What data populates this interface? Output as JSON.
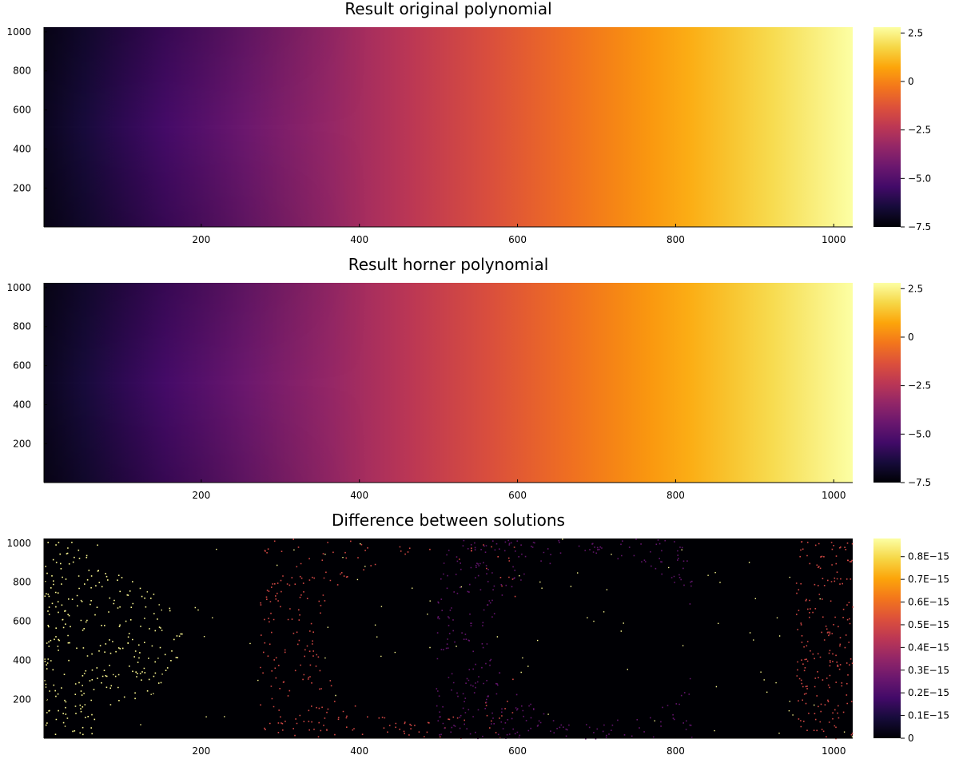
{
  "chart_data": [
    {
      "type": "heatmap",
      "title": "Result original polynomial",
      "x_ticks": [
        200,
        400,
        600,
        800,
        1000
      ],
      "y_ticks": [
        200,
        400,
        600,
        800,
        1000
      ],
      "xlim": [
        1,
        1024
      ],
      "ylim": [
        1,
        1024
      ],
      "colormap": "inferno",
      "colorbar": {
        "range": [
          -7.5,
          2.8
        ],
        "ticks": [
          2.5,
          0,
          -2.5,
          -5.0,
          -7.5
        ],
        "tick_labels": [
          "2.5",
          "0",
          "−2.5",
          "−5.0",
          "−7.5"
        ]
      },
      "grid": false
    },
    {
      "type": "heatmap",
      "title": "Result horner polynomial",
      "x_ticks": [
        200,
        400,
        600,
        800,
        1000
      ],
      "y_ticks": [
        200,
        400,
        600,
        800,
        1000
      ],
      "xlim": [
        1,
        1024
      ],
      "ylim": [
        1,
        1024
      ],
      "colormap": "inferno",
      "colorbar": {
        "range": [
          -7.5,
          2.8
        ],
        "ticks": [
          2.5,
          0,
          -2.5,
          -5.0,
          -7.5
        ],
        "tick_labels": [
          "2.5",
          "0",
          "−2.5",
          "−5.0",
          "−7.5"
        ]
      },
      "grid": false
    },
    {
      "type": "heatmap",
      "title": "Difference between solutions",
      "x_ticks": [
        200,
        400,
        600,
        800,
        1000
      ],
      "y_ticks": [
        200,
        400,
        600,
        800,
        1000
      ],
      "xlim": [
        1,
        1024
      ],
      "ylim": [
        1,
        1024
      ],
      "colormap": "inferno",
      "colorbar": {
        "range": [
          0,
          8.8e-16
        ],
        "ticks": [
          8e-16,
          7e-16,
          6e-16,
          5e-16,
          4e-16,
          3e-16,
          2e-16,
          1e-16,
          0
        ],
        "tick_labels": [
          "0.8E−15",
          "0.7E−15",
          "0.6E−15",
          "0.5E−15",
          "0.4E−15",
          "0.3E−15",
          "0.2E−15",
          "0.1E−15",
          "0"
        ]
      },
      "grid": false
    }
  ]
}
